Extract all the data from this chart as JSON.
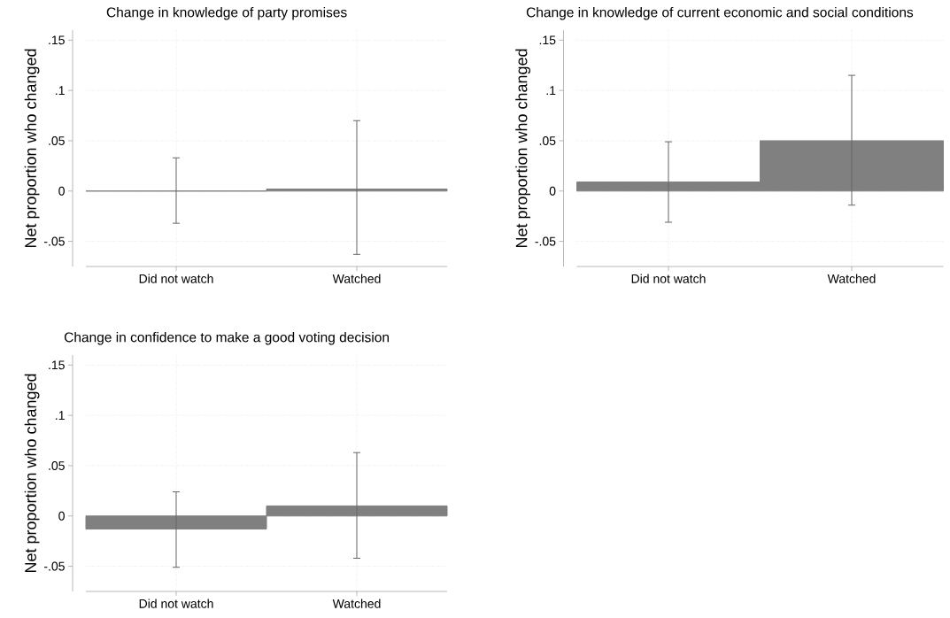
{
  "chart_data": [
    {
      "type": "bar",
      "title": "Change in knowledge of party promises",
      "ylabel": "Net proportion who changed",
      "categories": [
        "Did not watch",
        "Watched"
      ],
      "values": [
        0.0,
        0.002
      ],
      "errors": [
        [
          -0.032,
          0.033
        ],
        [
          -0.063,
          0.07
        ]
      ],
      "color": "#808080",
      "ylim": [
        -0.075,
        0.16
      ],
      "yticks": [
        {
          "value": -0.05,
          "label": "-.05"
        },
        0,
        {
          "value": 0.05,
          "label": ".05"
        },
        {
          "value": 0.1,
          "label": ".1"
        },
        {
          "value": 0.15,
          "label": ".15"
        }
      ],
      "grid": true
    },
    {
      "type": "bar",
      "title": "Change in knowledge of current economic and social conditions",
      "ylabel": "Net proportion who changed",
      "categories": [
        "Did not watch",
        "Watched"
      ],
      "values": [
        0.009,
        0.05
      ],
      "errors": [
        [
          -0.031,
          0.049
        ],
        [
          -0.014,
          0.115
        ]
      ],
      "color": "#808080",
      "ylim": [
        -0.075,
        0.16
      ],
      "yticks": [
        {
          "value": -0.05,
          "label": "-.05"
        },
        0,
        {
          "value": 0.05,
          "label": ".05"
        },
        {
          "value": 0.1,
          "label": ".1"
        },
        {
          "value": 0.15,
          "label": ".15"
        }
      ],
      "grid": true
    },
    {
      "type": "bar",
      "title": "Change in confidence to make a good voting decision",
      "ylabel": "Net proportion who changed",
      "categories": [
        "Did not watch",
        "Watched"
      ],
      "values": [
        -0.013,
        0.01
      ],
      "errors": [
        [
          -0.051,
          0.024
        ],
        [
          -0.042,
          0.063
        ]
      ],
      "color": "#808080",
      "ylim": [
        -0.075,
        0.16
      ],
      "yticks": [
        {
          "value": -0.05,
          "label": "-.05"
        },
        0,
        {
          "value": 0.05,
          "label": ".05"
        },
        {
          "value": 0.1,
          "label": ".1"
        },
        {
          "value": 0.15,
          "label": ".15"
        }
      ],
      "grid": true
    }
  ]
}
